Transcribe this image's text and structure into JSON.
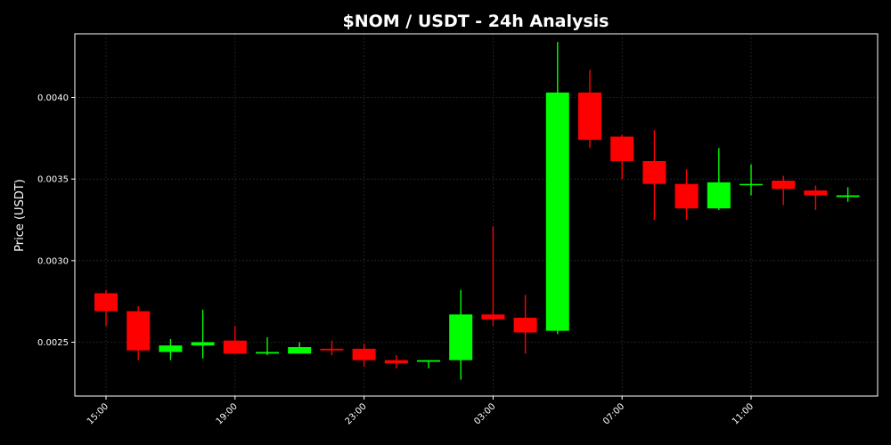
{
  "chart_data": {
    "type": "candlestick",
    "title": "$NOM / USDT - 24h Analysis",
    "ylabel": "Price (USDT)",
    "xlabel": "",
    "ylim": [
      0.00217,
      0.00439
    ],
    "yticks": [
      "0.0025",
      "0.0030",
      "0.0035",
      "0.0040"
    ],
    "xticks": [
      "15:00",
      "19:00",
      "23:00",
      "03:00",
      "07:00",
      "11:00"
    ],
    "grid": true,
    "colors": {
      "up": "#00ff00",
      "down": "#ff0000",
      "background": "#000000",
      "text": "#ffffff"
    },
    "candles": [
      {
        "time": "15:00",
        "open": 0.0028,
        "high": 0.00282,
        "low": 0.0026,
        "close": 0.00269
      },
      {
        "time": "16:00",
        "open": 0.00269,
        "high": 0.00272,
        "low": 0.00239,
        "close": 0.00245
      },
      {
        "time": "17:00",
        "open": 0.00244,
        "high": 0.00252,
        "low": 0.00239,
        "close": 0.00248
      },
      {
        "time": "18:00",
        "open": 0.00248,
        "high": 0.0027,
        "low": 0.0024,
        "close": 0.0025
      },
      {
        "time": "19:00",
        "open": 0.00251,
        "high": 0.0026,
        "low": 0.00243,
        "close": 0.00243
      },
      {
        "time": "20:00",
        "open": 0.00243,
        "high": 0.00253,
        "low": 0.00242,
        "close": 0.00244
      },
      {
        "time": "21:00",
        "open": 0.00243,
        "high": 0.0025,
        "low": 0.00243,
        "close": 0.00247
      },
      {
        "time": "22:00",
        "open": 0.00246,
        "high": 0.00251,
        "low": 0.00242,
        "close": 0.00245
      },
      {
        "time": "23:00",
        "open": 0.00246,
        "high": 0.00249,
        "low": 0.00235,
        "close": 0.00239
      },
      {
        "time": "00:00",
        "open": 0.00239,
        "high": 0.00242,
        "low": 0.00234,
        "close": 0.00237
      },
      {
        "time": "01:00",
        "open": 0.00238,
        "high": 0.00239,
        "low": 0.00234,
        "close": 0.00239
      },
      {
        "time": "02:00",
        "open": 0.00239,
        "high": 0.00282,
        "low": 0.00227,
        "close": 0.00267
      },
      {
        "time": "03:00",
        "open": 0.00267,
        "high": 0.00321,
        "low": 0.0026,
        "close": 0.00264
      },
      {
        "time": "04:00",
        "open": 0.00265,
        "high": 0.00279,
        "low": 0.00243,
        "close": 0.00256
      },
      {
        "time": "05:00",
        "open": 0.00257,
        "high": 0.00434,
        "low": 0.00255,
        "close": 0.00403
      },
      {
        "time": "06:00",
        "open": 0.00403,
        "high": 0.00417,
        "low": 0.00369,
        "close": 0.00374
      },
      {
        "time": "07:00",
        "open": 0.00376,
        "high": 0.00377,
        "low": 0.0035,
        "close": 0.00361
      },
      {
        "time": "08:00",
        "open": 0.00361,
        "high": 0.0038,
        "low": 0.00325,
        "close": 0.00347
      },
      {
        "time": "09:00",
        "open": 0.00347,
        "high": 0.00356,
        "low": 0.00325,
        "close": 0.00332
      },
      {
        "time": "10:00",
        "open": 0.00332,
        "high": 0.00369,
        "low": 0.00331,
        "close": 0.00348
      },
      {
        "time": "11:00",
        "open": 0.00347,
        "high": 0.00359,
        "low": 0.0034,
        "close": 0.00347
      },
      {
        "time": "12:00",
        "open": 0.00349,
        "high": 0.00352,
        "low": 0.00334,
        "close": 0.00344
      },
      {
        "time": "13:00",
        "open": 0.00343,
        "high": 0.00346,
        "low": 0.00331,
        "close": 0.0034
      },
      {
        "time": "14:00",
        "open": 0.00339,
        "high": 0.00345,
        "low": 0.00336,
        "close": 0.0034
      }
    ]
  }
}
